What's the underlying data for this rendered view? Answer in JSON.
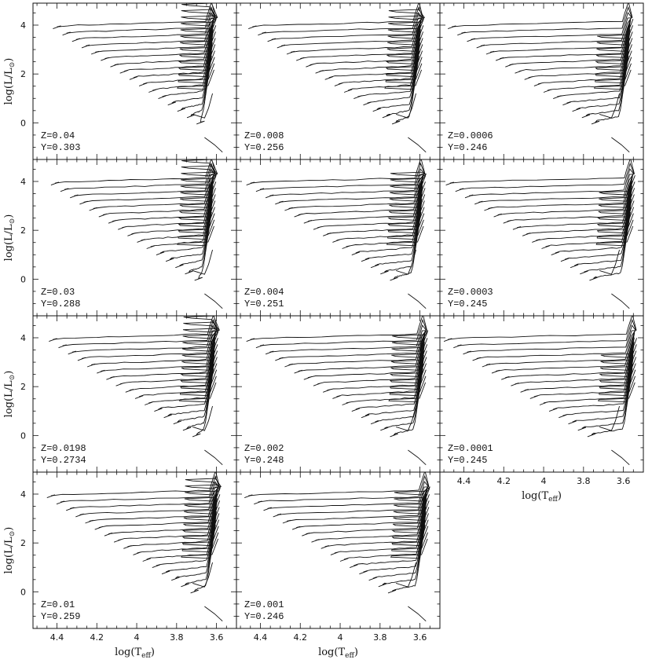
{
  "figure": {
    "rows": 4,
    "cols": 3
  },
  "axes": {
    "x_label_main": "log(T",
    "x_label_sub": "eff",
    "x_label_close": ")",
    "y_label_main": "log(L/L",
    "y_label_sub": "⊙",
    "y_label_close": ")",
    "xlim": [
      4.52,
      3.5
    ],
    "ylim": [
      -1.5,
      4.9
    ],
    "x_ticks": [
      4.4,
      4.2,
      4.0,
      3.8,
      3.6
    ],
    "x_tick_labels": [
      "4.4",
      "4.2",
      "4",
      "3.8",
      "3.6"
    ],
    "y_ticks": [
      0,
      2,
      4
    ],
    "y_tick_labels": [
      "0",
      "2",
      "4"
    ]
  },
  "chart_data": [
    {
      "type": "line",
      "panel": "r0c0",
      "row": 0,
      "col": 0,
      "z_label": "Z=0.04",
      "y_label": "Y=0.303",
      "hot_start": 4.42,
      "loop_lum": 3.3,
      "rg_shift": 0.0,
      "n_tracks": 16
    },
    {
      "type": "line",
      "panel": "r0c1",
      "row": 0,
      "col": 1,
      "z_label": "Z=0.008",
      "y_label": "Y=0.256",
      "hot_start": 4.46,
      "loop_lum": 3.0,
      "rg_shift": 0.02,
      "n_tracks": 16
    },
    {
      "type": "line",
      "panel": "r0c2",
      "row": 0,
      "col": 2,
      "z_label": "Z=0.0006",
      "y_label": "Y=0.246",
      "hot_start": 4.48,
      "loop_lum": 2.0,
      "rg_shift": 0.05,
      "n_tracks": 16
    },
    {
      "type": "line",
      "panel": "r1c0",
      "row": 1,
      "col": 0,
      "z_label": "Z=0.03",
      "y_label": "Y=0.288",
      "hot_start": 4.43,
      "loop_lum": 3.2,
      "rg_shift": 0.0,
      "n_tracks": 16
    },
    {
      "type": "line",
      "panel": "r1c1",
      "row": 1,
      "col": 1,
      "z_label": "Z=0.004",
      "y_label": "Y=0.251",
      "hot_start": 4.47,
      "loop_lum": 2.7,
      "rg_shift": 0.03,
      "n_tracks": 16
    },
    {
      "type": "line",
      "panel": "r1c2",
      "row": 1,
      "col": 2,
      "z_label": "Z=0.0003",
      "y_label": "Y=0.245",
      "hot_start": 4.49,
      "loop_lum": 1.8,
      "rg_shift": 0.06,
      "n_tracks": 16
    },
    {
      "type": "line",
      "panel": "r2c0",
      "row": 2,
      "col": 0,
      "z_label": "Z=0.0198",
      "y_label": "Y=0.2734",
      "hot_start": 4.44,
      "loop_lum": 3.1,
      "rg_shift": 0.01,
      "n_tracks": 16
    },
    {
      "type": "line",
      "panel": "r2c1",
      "row": 2,
      "col": 1,
      "z_label": "Z=0.002",
      "y_label": "Y=0.248",
      "hot_start": 4.47,
      "loop_lum": 2.5,
      "rg_shift": 0.04,
      "n_tracks": 16
    },
    {
      "type": "line",
      "panel": "r2c2",
      "row": 2,
      "col": 2,
      "z_label": "Z=0.0001",
      "y_label": "Y=0.245",
      "hot_start": 4.5,
      "loop_lum": 1.6,
      "rg_shift": 0.07,
      "n_tracks": 16
    },
    {
      "type": "line",
      "panel": "r3c0",
      "row": 3,
      "col": 0,
      "z_label": "Z=0.01",
      "y_label": "Y=0.259",
      "hot_start": 4.45,
      "loop_lum": 3.0,
      "rg_shift": 0.02,
      "n_tracks": 16
    },
    {
      "type": "line",
      "panel": "r3c1",
      "row": 3,
      "col": 1,
      "z_label": "Z=0.001",
      "y_label": "Y=0.246",
      "hot_start": 4.48,
      "loop_lum": 2.3,
      "rg_shift": 0.05,
      "n_tracks": 16
    }
  ],
  "colors": {
    "ink": "#111111",
    "background": "#ffffff"
  }
}
